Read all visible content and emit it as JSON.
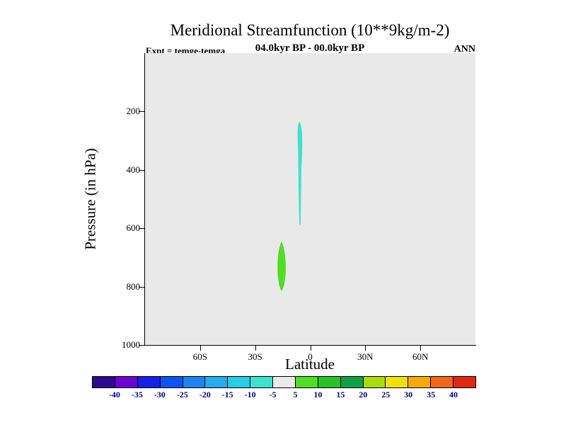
{
  "title": "Meridional Streamfunction (10**9kg/m-2)",
  "header": {
    "expt": "Expt = temge-temga",
    "period": "04.0kyr BP - 00.0kyr BP",
    "season": "ANN"
  },
  "axes": {
    "y_label": "Pressure (in hPa)",
    "x_label": "Latitude",
    "y_ticks": [
      "200",
      "400",
      "600",
      "800",
      "1000"
    ],
    "y_tick_values": [
      200,
      400,
      600,
      800,
      1000
    ],
    "x_ticks": [
      "60S",
      "30S",
      "0",
      "30N",
      "60N"
    ],
    "x_tick_values": [
      -60,
      -30,
      0,
      30,
      60
    ]
  },
  "colorbar": {
    "labels": [
      "-40",
      "-35",
      "-30",
      "-25",
      "-20",
      "-15",
      "-10",
      "-5",
      "5",
      "10",
      "15",
      "20",
      "25",
      "30",
      "35",
      "40"
    ],
    "colors": [
      "#2d0a90",
      "#6a05d2",
      "#1420e6",
      "#0a55f0",
      "#1e84f5",
      "#28aaf0",
      "#28cce6",
      "#3fe0ce",
      "#e9e9e9",
      "#4fdd26",
      "#28c228",
      "#12a045",
      "#a8dd0a",
      "#f0e00a",
      "#f5aa0a",
      "#f0661e",
      "#e02814"
    ],
    "label_color": "#00008b"
  },
  "chart_data": {
    "type": "heatmap",
    "subtype": "filled-contour-anomaly",
    "title": "Meridional Streamfunction (10**9kg/m-2)",
    "subtitle": "04.0kyr BP - 00.0kyr BP",
    "experiment": "Expt = temge-temga",
    "season": "ANN",
    "xlabel": "Latitude",
    "ylabel": "Pressure (in hPa)",
    "xlim": [
      -90,
      90
    ],
    "ylim_hPa": [
      0,
      1000
    ],
    "y_axis_inverted_pressure": true,
    "x_ticks": [
      -60,
      -30,
      0,
      30,
      60
    ],
    "y_ticks": [
      200,
      400,
      600,
      800,
      1000
    ],
    "contour_levels": [
      -40,
      -35,
      -30,
      -25,
      -20,
      -15,
      -10,
      -5,
      5,
      10,
      15,
      20,
      25,
      30,
      35,
      40
    ],
    "background_band": {
      "range": [
        -5,
        5
      ],
      "color": "#e9e9e9"
    },
    "features": [
      {
        "name": "negative-cell",
        "value_band": [
          -10,
          -5
        ],
        "color": "#3fe0ce",
        "lat_range": [
          -8,
          -4
        ],
        "pressure_range_hPa": [
          240,
          590
        ]
      },
      {
        "name": "positive-cell",
        "value_band": [
          5,
          10
        ],
        "color": "#4fdd26",
        "lat_range": [
          -19,
          -13
        ],
        "pressure_range_hPa": [
          650,
          810
        ]
      }
    ],
    "legend_position": "bottom",
    "grid": false
  }
}
